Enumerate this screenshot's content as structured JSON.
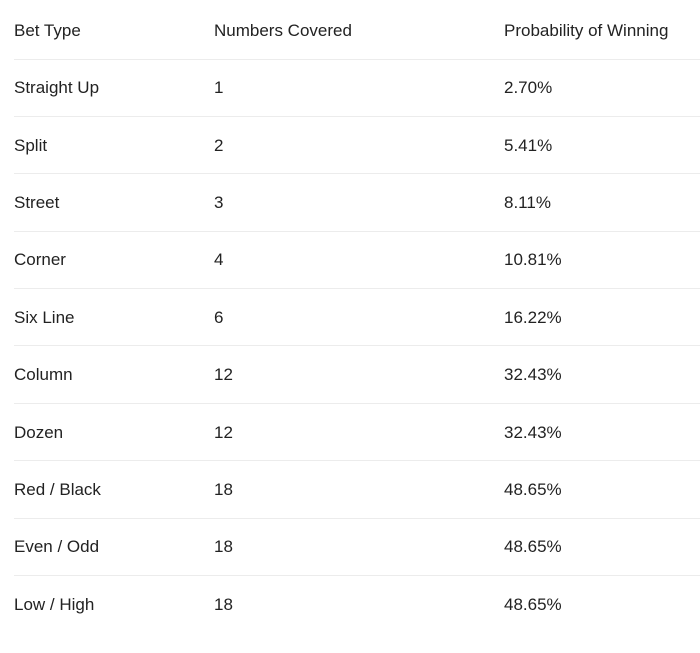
{
  "table": {
    "headers": [
      "Bet Type",
      "Numbers Covered",
      "Probability of Winning"
    ],
    "rows": [
      [
        "Straight Up",
        "1",
        "2.70%"
      ],
      [
        "Split",
        "2",
        "5.41%"
      ],
      [
        "Street",
        "3",
        "8.11%"
      ],
      [
        "Corner",
        "4",
        "10.81%"
      ],
      [
        "Six Line",
        "6",
        "16.22%"
      ],
      [
        "Column",
        "12",
        "32.43%"
      ],
      [
        "Dozen",
        "12",
        "32.43%"
      ],
      [
        "Red / Black",
        "18",
        "48.65%"
      ],
      [
        "Even / Odd",
        "18",
        "48.65%"
      ],
      [
        "Low / High",
        "18",
        "48.65%"
      ]
    ]
  }
}
